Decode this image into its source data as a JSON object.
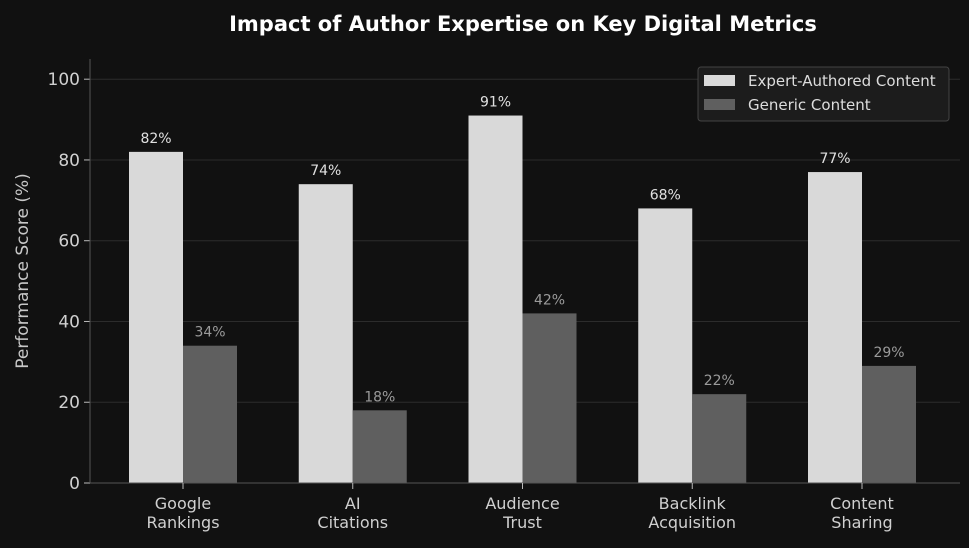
{
  "chart_data": {
    "type": "bar",
    "title": "Impact of Author Expertise on Key Digital Metrics",
    "xlabel": "",
    "ylabel": "Performance Score (%)",
    "ylim": [
      0,
      105
    ],
    "yticks": [
      "0",
      "20",
      "40",
      "60",
      "80",
      "100"
    ],
    "grid": true,
    "legend_position": "top-right",
    "categories": [
      [
        "Google",
        "Rankings"
      ],
      [
        "AI",
        "Citations"
      ],
      [
        "Audience",
        "Trust"
      ],
      [
        "Backlink",
        "Acquisition"
      ],
      [
        "Content",
        "Sharing"
      ]
    ],
    "series": [
      {
        "name": "Expert-Authored Content",
        "values": [
          82,
          74,
          91,
          68,
          77
        ],
        "labels": [
          "82%",
          "74%",
          "91%",
          "68%",
          "77%"
        ],
        "color": "#d9d9d9",
        "label_color": "#e0e0e0"
      },
      {
        "name": "Generic Content",
        "values": [
          34,
          18,
          42,
          22,
          29
        ],
        "labels": [
          "34%",
          "18%",
          "42%",
          "22%",
          "29%"
        ],
        "color": "#5f5f5f",
        "label_color": "#9a9a9a"
      }
    ],
    "background": "#111111"
  }
}
